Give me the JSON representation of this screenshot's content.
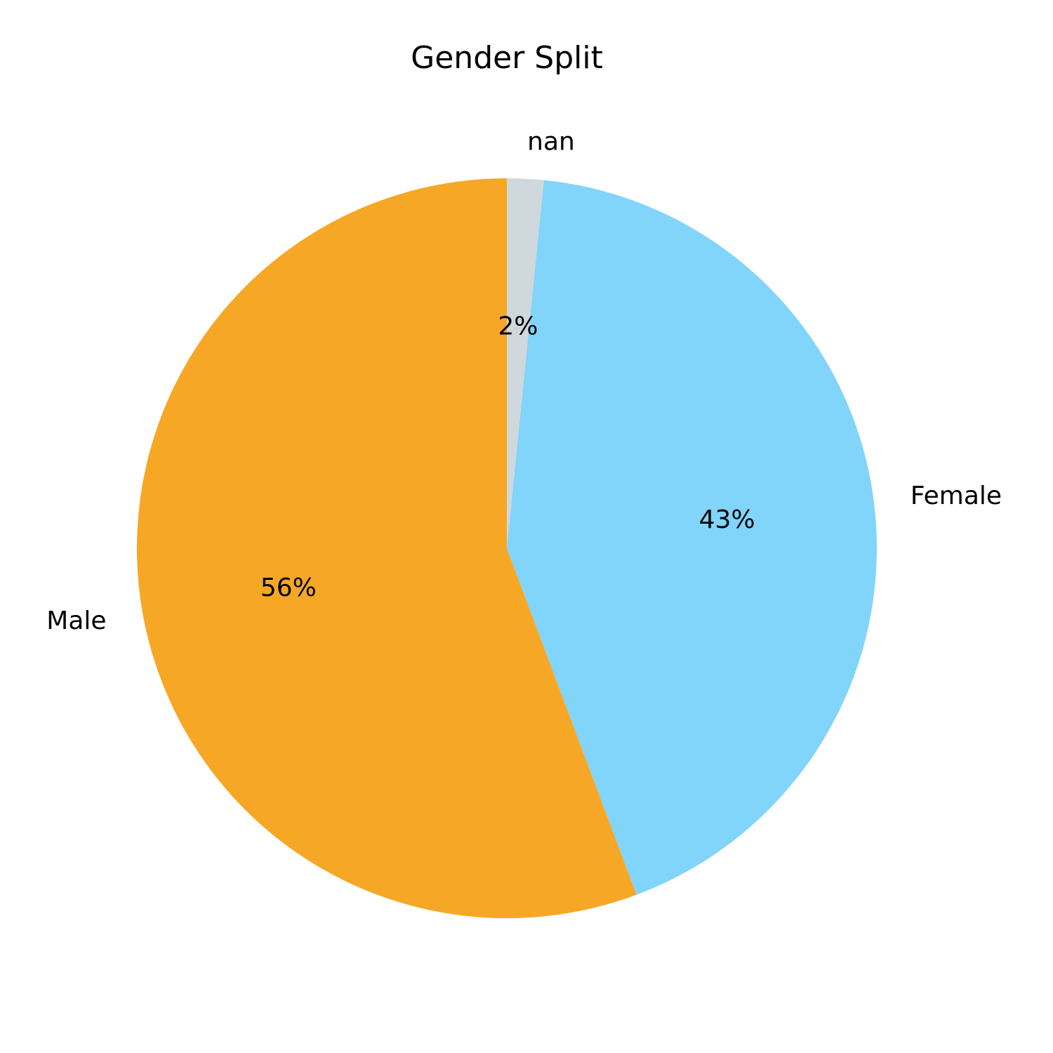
{
  "chart_data": {
    "type": "pie",
    "title": "Gender Split",
    "categories": [
      "nan",
      "Female",
      "Male"
    ],
    "values": [
      1.6,
      42.7,
      55.7
    ],
    "value_labels": [
      "2%",
      "43%",
      "56%"
    ],
    "colors": [
      "#cfd8dc",
      "#81d4fa",
      "#f7a726"
    ],
    "start": "top",
    "direction": "clockwise"
  }
}
